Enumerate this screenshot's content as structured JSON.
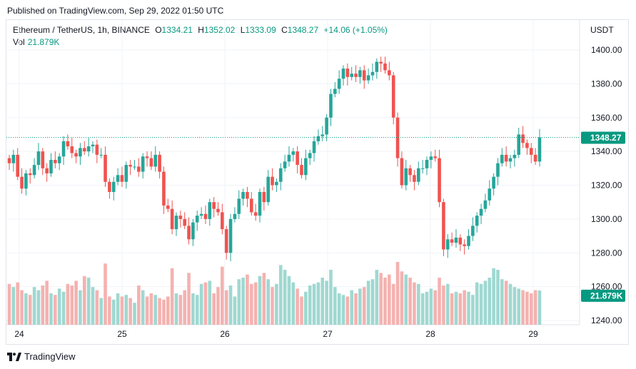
{
  "published": "Published on TradingView.com, Sep 29, 2022 01:50 UTC",
  "legend": {
    "symbol": "Ethereum / TetherUS, 1h, BINANCE",
    "o_label": "O",
    "o": "1334.21",
    "h_label": "H",
    "h": "1352.02",
    "l_label": "L",
    "l": "1333.09",
    "c_label": "C",
    "c": "1348.27",
    "change": "+14.06 (+1.05%)",
    "vol_label": "Vol",
    "vol": "21.879K"
  },
  "currency": "USDT",
  "footer": {
    "brand": "TradingView"
  },
  "colors": {
    "up": "#26a69a",
    "down": "#ef5350",
    "vol_up": "#9fd8d1",
    "vol_down": "#f4b2b0",
    "last": "#089981"
  },
  "chart_data": {
    "type": "candlestick",
    "title": "Ethereum / TetherUS, 1h, BINANCE",
    "y_ticks": [
      "1400.00",
      "1380.00",
      "1360.00",
      "1340.00",
      "1320.00",
      "1300.00",
      "1280.00",
      "1260.00",
      "1240.00"
    ],
    "ylim": [
      1240,
      1400
    ],
    "x_labels": [
      "24",
      "25",
      "26",
      "27",
      "28",
      "29"
    ],
    "last_price": 1348.27,
    "last_price_label": "1348.27",
    "last_volume": 21.879,
    "last_volume_label": "21.879K",
    "closes": [
      1333,
      1338,
      1325,
      1318,
      1327,
      1326,
      1332,
      1340,
      1330,
      1327,
      1335,
      1333,
      1337,
      1346,
      1343,
      1339,
      1337,
      1342,
      1340,
      1343,
      1344,
      1338,
      1338,
      1322,
      1316,
      1322,
      1326,
      1322,
      1332,
      1331,
      1331,
      1328,
      1337,
      1336,
      1331,
      1338,
      1328,
      1308,
      1306,
      1294,
      1302,
      1300,
      1296,
      1288,
      1298,
      1302,
      1303,
      1300,
      1310,
      1306,
      1304,
      1294,
      1280,
      1300,
      1303,
      1312,
      1316,
      1312,
      1304,
      1302,
      1316,
      1310,
      1325,
      1320,
      1322,
      1330,
      1334,
      1338,
      1340,
      1332,
      1326,
      1336,
      1339,
      1346,
      1349,
      1350,
      1360,
      1374,
      1377,
      1383,
      1389,
      1384,
      1386,
      1384,
      1388,
      1382,
      1385,
      1387,
      1393,
      1392,
      1388,
      1385,
      1360,
      1336,
      1320,
      1330,
      1326,
      1322,
      1330,
      1330,
      1335,
      1337,
      1336,
      1310,
      1282,
      1288,
      1286,
      1289,
      1285,
      1284,
      1290,
      1296,
      1302,
      1306,
      1311,
      1318,
      1325,
      1333,
      1338,
      1334,
      1336,
      1338,
      1350,
      1345,
      1342,
      1338,
      1334,
      1348.27
    ],
    "volumes_k": [
      26,
      24,
      27,
      22,
      20,
      19,
      24,
      22,
      25,
      28,
      20,
      19,
      23,
      21,
      26,
      25,
      28,
      22,
      31,
      30,
      24,
      22,
      17,
      39,
      18,
      16,
      20,
      18,
      19,
      17,
      14,
      25,
      22,
      18,
      20,
      19,
      17,
      16,
      18,
      36,
      20,
      19,
      22,
      33,
      20,
      19,
      26,
      27,
      28,
      20,
      24,
      37,
      22,
      25,
      18,
      29,
      30,
      32,
      26,
      27,
      31,
      33,
      29,
      24,
      26,
      38,
      35,
      31,
      27,
      23,
      18,
      21,
      25,
      26,
      27,
      30,
      28,
      35,
      24,
      20,
      19,
      18,
      22,
      20,
      23,
      24,
      28,
      29,
      35,
      33,
      30,
      32,
      26,
      40,
      34,
      32,
      30,
      27,
      26,
      20,
      21,
      23,
      22,
      30,
      25,
      26,
      20,
      21,
      20,
      22,
      21,
      19,
      27,
      26,
      28,
      30,
      36,
      35,
      29,
      28,
      26,
      24,
      23,
      22,
      21,
      20,
      22,
      21.879
    ]
  }
}
